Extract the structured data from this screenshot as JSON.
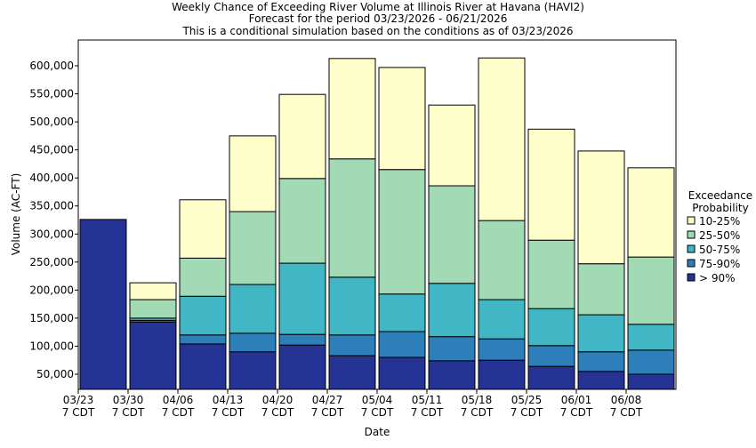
{
  "chart_data": {
    "type": "stacked_bar",
    "title": [
      "Weekly Chance of Exceeding River Volume at Illinois River at Havana (HAVI2)",
      "Forecast for the period 03/23/2026 - 06/21/2026",
      "This is a conditional simulation based on the conditions as of 03/23/2026"
    ],
    "x_label": "Date",
    "y_label": "Volume (AC-FT)",
    "categories": [
      "03/23",
      "03/30",
      "04/06",
      "04/13",
      "04/20",
      "04/27",
      "05/04",
      "05/11",
      "05/18",
      "05/25",
      "06/01",
      "06/08"
    ],
    "category_sublabels": [
      "7 CDT",
      "7 CDT",
      "7 CDT",
      "7 CDT",
      "7 CDT",
      "7 CDT",
      "7 CDT",
      "7 CDT",
      "7 CDT",
      "7 CDT",
      "7 CDT",
      "7 CDT"
    ],
    "legend_title": [
      "Exceedance",
      "Probability"
    ],
    "series": [
      {
        "name": "> 90%",
        "color": "#253494",
        "values": [
          326000,
          143000,
          104000,
          90000,
          102000,
          83000,
          80000,
          74000,
          75000,
          64000,
          55000,
          50000
        ]
      },
      {
        "name": "75-90%",
        "color": "#2c7fb8",
        "values": [
          0,
          3000,
          16000,
          33000,
          19000,
          37000,
          46000,
          43000,
          38000,
          37000,
          35000,
          43000
        ]
      },
      {
        "name": "50-75%",
        "color": "#41b6c4",
        "values": [
          0,
          4000,
          69000,
          87000,
          127000,
          103000,
          67000,
          95000,
          70000,
          66000,
          66000,
          46000
        ]
      },
      {
        "name": "25-50%",
        "color": "#a1dab4",
        "values": [
          0,
          33000,
          68000,
          130000,
          151000,
          211000,
          222000,
          174000,
          141000,
          122000,
          91000,
          120000
        ]
      },
      {
        "name": "10-25%",
        "color": "#ffffcc",
        "values": [
          0,
          30000,
          104000,
          135000,
          150000,
          179000,
          182000,
          144000,
          290000,
          198000,
          201000,
          159000
        ]
      }
    ],
    "ylim": [
      23000,
      646000
    ],
    "yticks": [
      {
        "value": 50000,
        "label": "50,000"
      },
      {
        "value": 100000,
        "label": "100,000"
      },
      {
        "value": 150000,
        "label": "150,000"
      },
      {
        "value": 200000,
        "label": "200,000"
      },
      {
        "value": 250000,
        "label": "250,000"
      },
      {
        "value": 300000,
        "label": "300,000"
      },
      {
        "value": 350000,
        "label": "350,000"
      },
      {
        "value": 400000,
        "label": "400,000"
      },
      {
        "value": 450000,
        "label": "450,000"
      },
      {
        "value": 500000,
        "label": "500,000"
      },
      {
        "value": 550000,
        "label": "550,000"
      },
      {
        "value": 600000,
        "label": "600,000"
      }
    ],
    "legend_position": "right"
  }
}
